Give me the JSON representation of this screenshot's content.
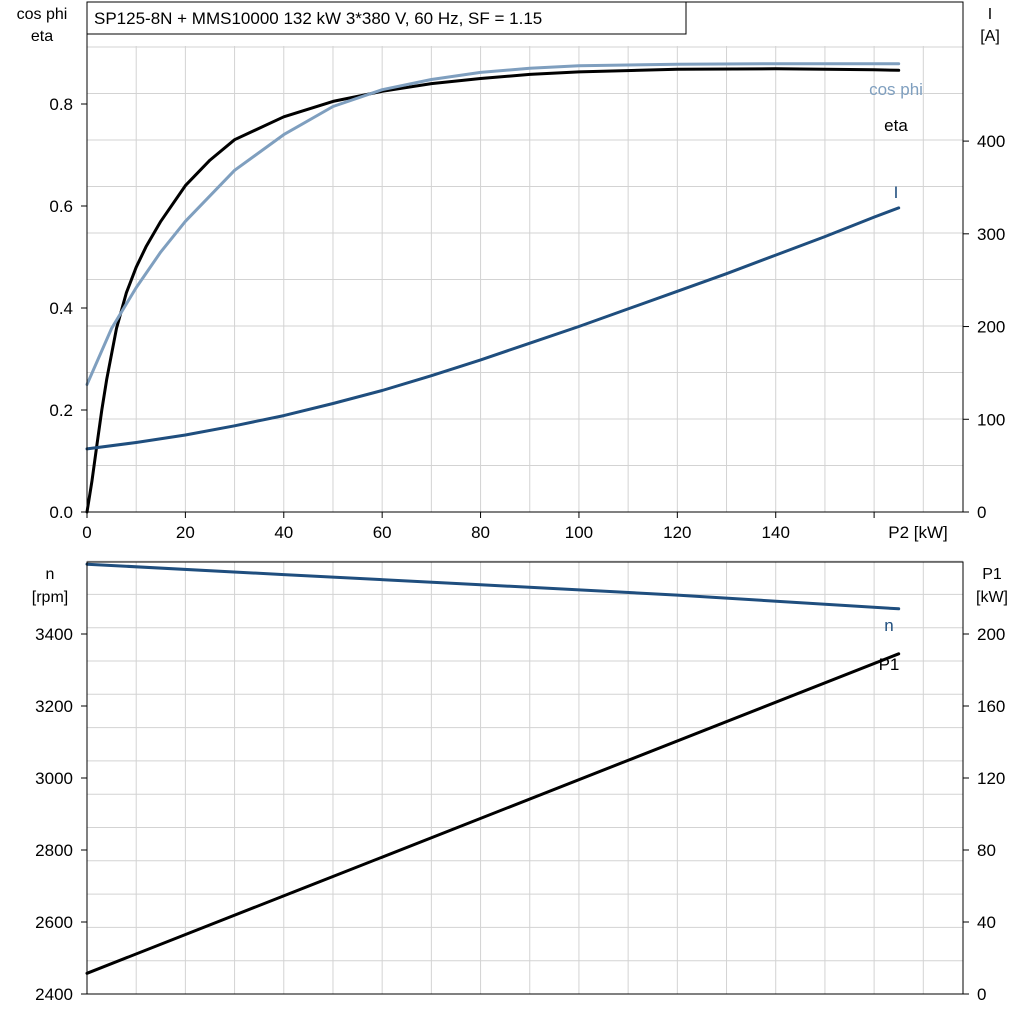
{
  "title": "SP125-8N + MMS10000   132 kW   3*380 V, 60 Hz, SF = 1.15",
  "colors": {
    "grid": "#d3d3d3",
    "axis": "#000000",
    "eta": "#000000",
    "cos_phi": "#7f9fbf",
    "current": "#1f4e7e",
    "speed": "#1f4e7e",
    "p1": "#000000"
  },
  "chart_data": [
    {
      "type": "line",
      "name": "upper",
      "x_label": "P2 [kW]",
      "x_ticks": [
        0,
        20,
        40,
        60,
        80,
        100,
        120,
        140
      ],
      "x_range": [
        0,
        180
      ],
      "left_axis": {
        "label_lines": [
          "cos phi",
          "eta"
        ],
        "range": [
          0,
          1.0
        ],
        "ticks": [
          "0.0",
          "0.2",
          "0.4",
          "0.6",
          "0.8"
        ]
      },
      "right_axis": {
        "label_lines": [
          "I",
          "[A]"
        ],
        "range": [
          0,
          550
        ],
        "ticks": [
          "0",
          "100",
          "200",
          "300",
          "400"
        ]
      },
      "grid": true,
      "series": [
        {
          "name": "eta",
          "axis": "left",
          "color_key": "eta",
          "x": [
            0,
            1,
            2,
            3,
            4,
            6,
            8,
            10,
            12,
            15,
            20,
            25,
            30,
            40,
            50,
            60,
            70,
            80,
            90,
            100,
            120,
            140,
            160,
            165
          ],
          "y": [
            0.0,
            0.06,
            0.13,
            0.2,
            0.26,
            0.36,
            0.43,
            0.48,
            0.52,
            0.57,
            0.64,
            0.69,
            0.73,
            0.775,
            0.805,
            0.825,
            0.84,
            0.85,
            0.858,
            0.863,
            0.868,
            0.869,
            0.867,
            0.866
          ]
        },
        {
          "name": "cos phi",
          "axis": "left",
          "color_key": "cos_phi",
          "x": [
            0,
            5,
            10,
            15,
            20,
            25,
            30,
            40,
            50,
            60,
            70,
            80,
            90,
            100,
            120,
            140,
            165
          ],
          "y": [
            0.25,
            0.36,
            0.44,
            0.51,
            0.57,
            0.62,
            0.67,
            0.74,
            0.795,
            0.828,
            0.848,
            0.862,
            0.87,
            0.875,
            0.878,
            0.879,
            0.879
          ]
        },
        {
          "name": "I",
          "axis": "right",
          "color_key": "current",
          "x": [
            0,
            10,
            20,
            30,
            40,
            50,
            60,
            70,
            80,
            90,
            100,
            110,
            120,
            130,
            140,
            150,
            160,
            165
          ],
          "y": [
            68,
            75,
            83,
            93,
            104,
            117,
            131,
            147,
            164,
            182,
            200,
            219,
            238,
            257,
            277,
            297,
            318,
            328
          ]
        }
      ]
    },
    {
      "type": "line",
      "name": "lower",
      "x_range": [
        0,
        180
      ],
      "left_axis": {
        "label_lines": [
          "n",
          "[rpm]"
        ],
        "range": [
          2400,
          3600
        ],
        "ticks": [
          "2400",
          "2600",
          "2800",
          "3000",
          "3200",
          "3400"
        ]
      },
      "right_axis": {
        "label_lines": [
          "P1",
          "[kW]"
        ],
        "range": [
          0,
          240
        ],
        "ticks": [
          "0",
          "40",
          "80",
          "120",
          "160",
          "200"
        ]
      },
      "grid": true,
      "series": [
        {
          "name": "n",
          "axis": "left",
          "color_key": "speed",
          "x": [
            0,
            40,
            80,
            120,
            165
          ],
          "y": [
            3594,
            3565,
            3537,
            3508,
            3470
          ]
        },
        {
          "name": "P1",
          "axis": "right",
          "color_key": "p1",
          "x": [
            0,
            165
          ],
          "y": [
            11.5,
            189
          ]
        }
      ]
    }
  ]
}
